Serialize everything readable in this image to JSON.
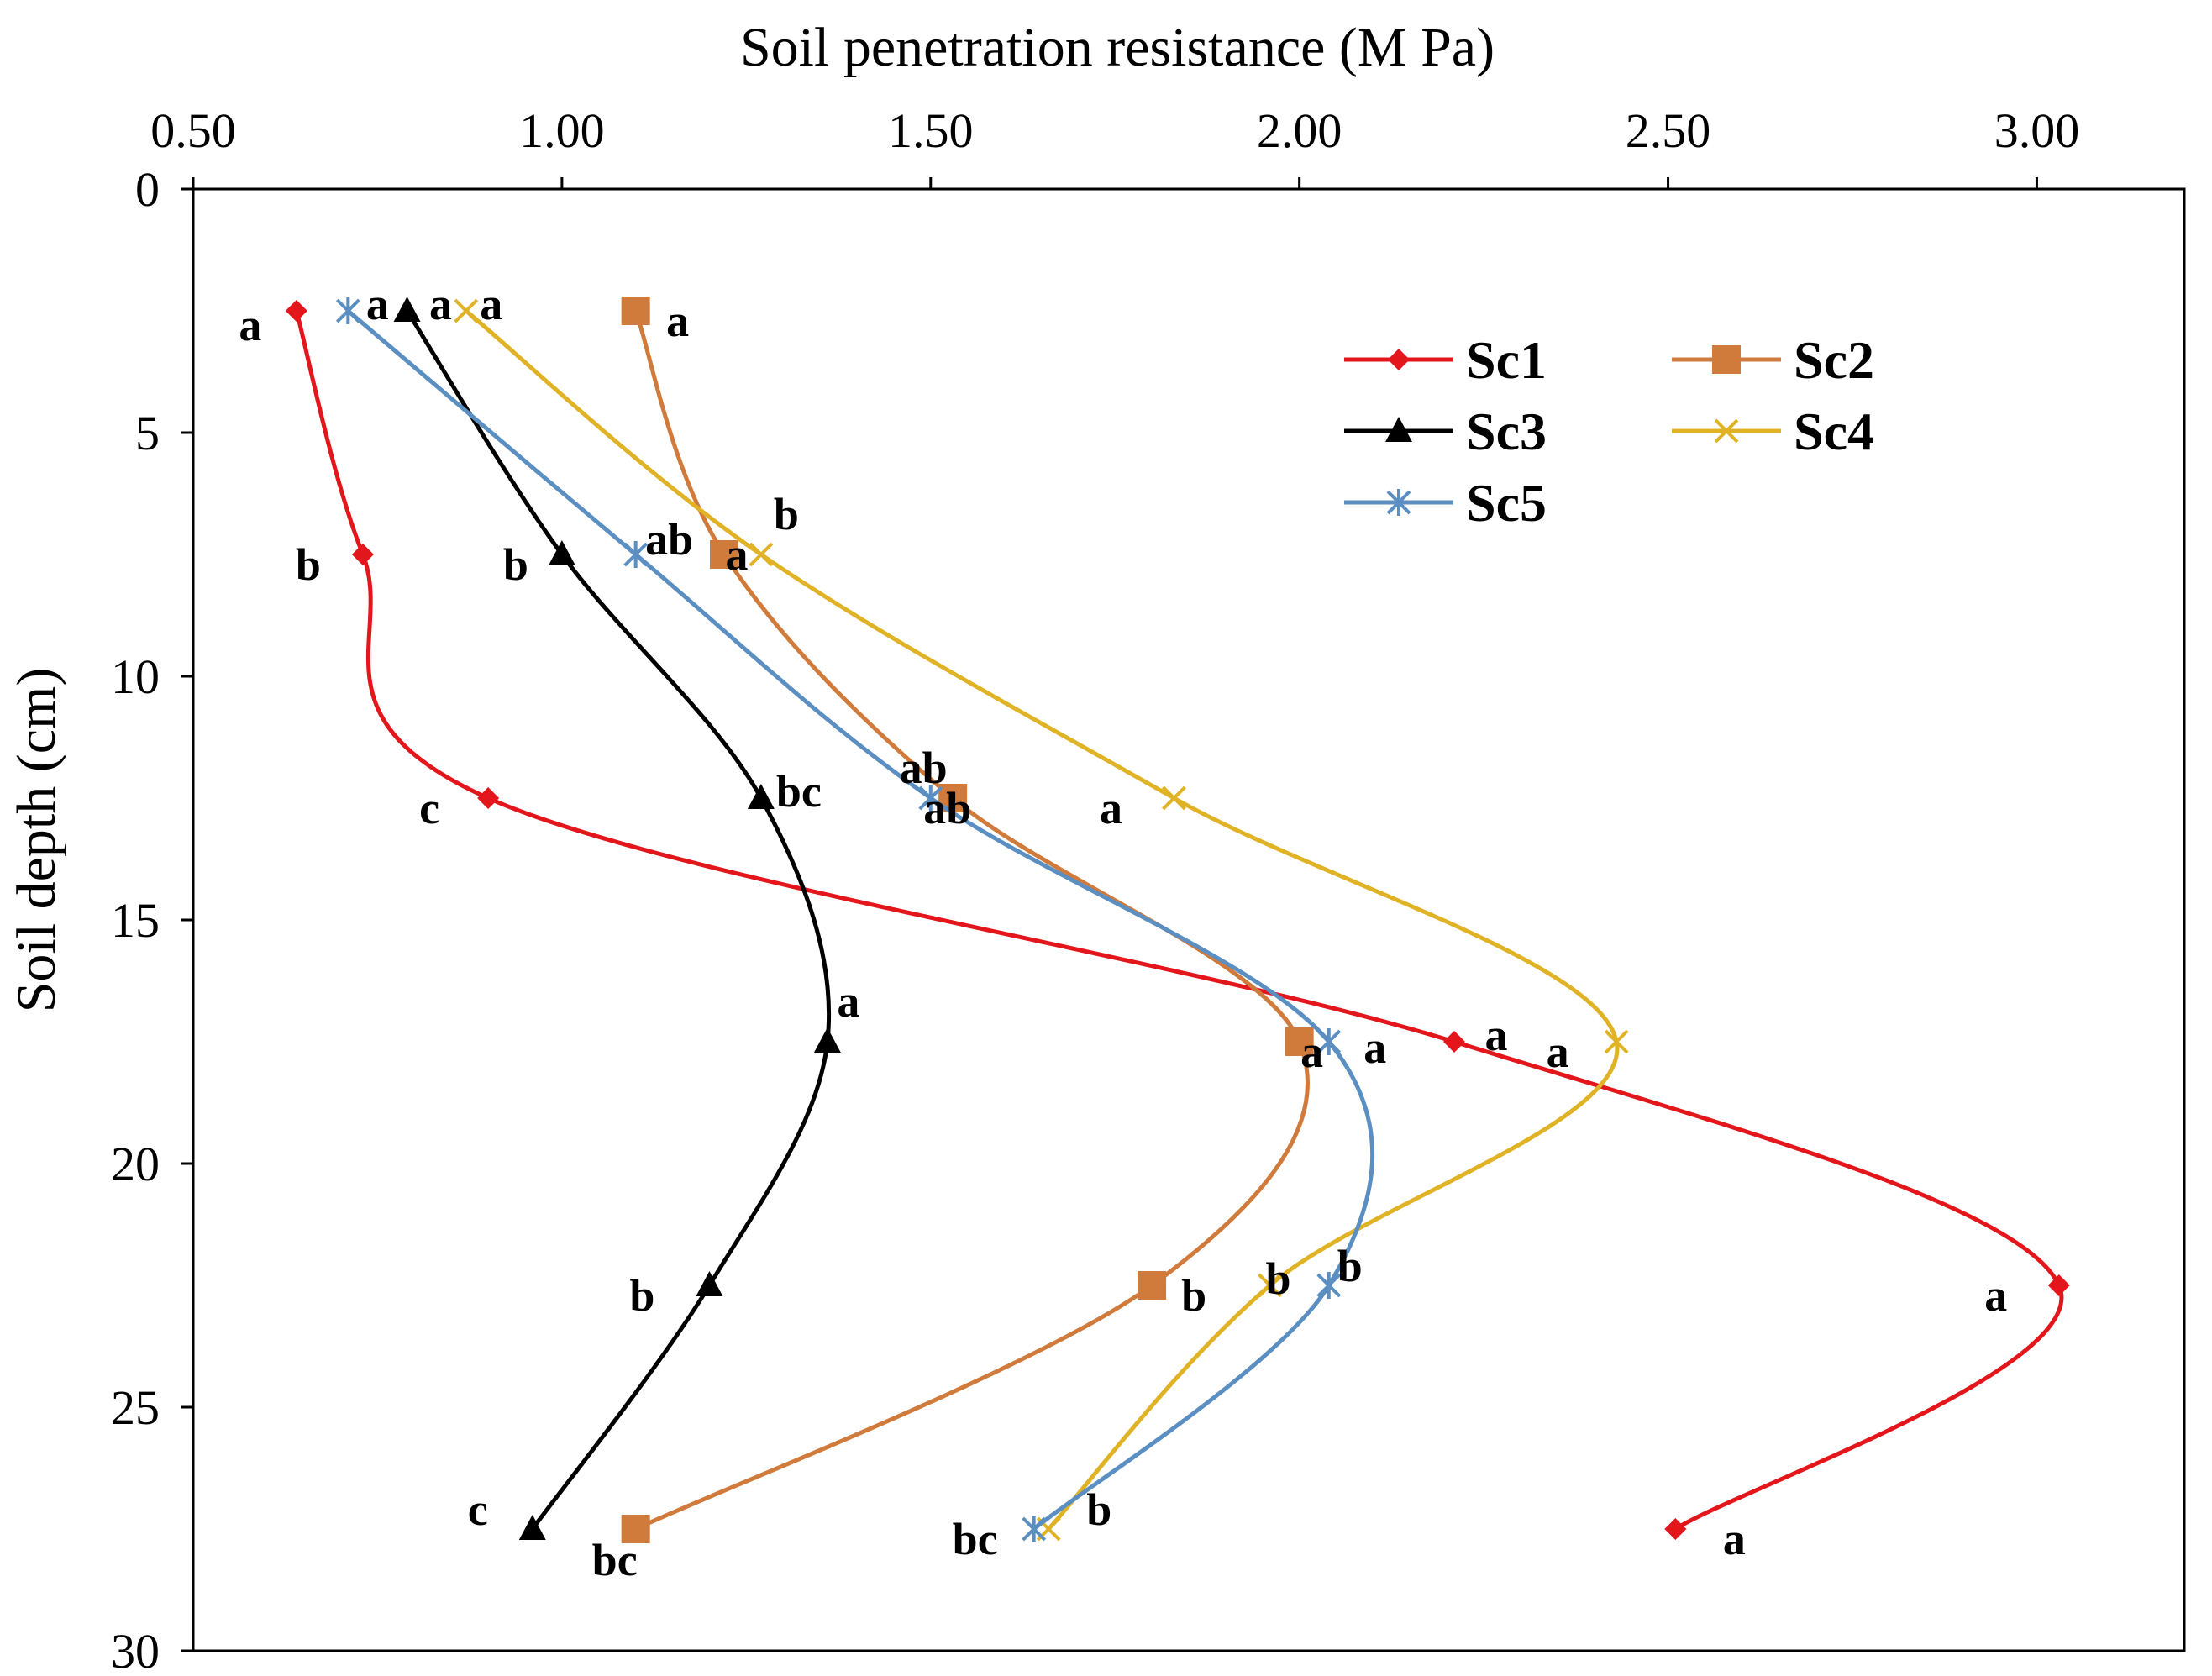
{
  "chart_data": {
    "type": "line",
    "title": "",
    "xlabel": "Soil penetration resistance (M Pa)",
    "ylabel": "Soil depth (cm)",
    "x_axis_position": "top",
    "y_axis_reversed": true,
    "xlim": [
      0.5,
      3.2
    ],
    "ylim": [
      0,
      30
    ],
    "x_ticks": [
      0.5,
      1.0,
      1.5,
      2.0,
      2.5,
      3.0
    ],
    "x_tick_labels": [
      "0.50",
      "1.00",
      "1.50",
      "2.00",
      "2.50",
      "3.00"
    ],
    "y_ticks": [
      0,
      5,
      10,
      15,
      20,
      25,
      30
    ],
    "y_tick_labels": [
      "0",
      "5",
      "10",
      "15",
      "20",
      "25",
      "30"
    ],
    "grid": false,
    "legend_position": "top-right",
    "depths": [
      2.5,
      7.5,
      12.5,
      17.5,
      22.5,
      27.5
    ],
    "series": [
      {
        "name": "Sc1",
        "color": "#e3161b",
        "marker": "diamond",
        "values": [
          0.64,
          0.73,
          0.9,
          2.21,
          3.03,
          2.51
        ],
        "labels": [
          "a",
          "b",
          "c",
          "a",
          "a",
          "a"
        ]
      },
      {
        "name": "Sc2",
        "color": "#d07b3c",
        "marker": "square",
        "values": [
          1.1,
          1.22,
          1.53,
          2.0,
          1.8,
          1.1
        ],
        "labels": [
          "a",
          "a",
          "ab",
          "a",
          "b",
          "bc"
        ]
      },
      {
        "name": "Sc3",
        "color": "#000000",
        "marker": "triangle",
        "values": [
          0.79,
          1.0,
          1.27,
          1.36,
          1.2,
          0.96
        ],
        "labels": [
          "a",
          "b",
          "bc",
          "a",
          "b",
          "c"
        ]
      },
      {
        "name": "Sc4",
        "color": "#e0b226",
        "marker": "x",
        "values": [
          0.87,
          1.27,
          1.83,
          2.43,
          1.96,
          1.66
        ],
        "labels": [
          "a",
          "b",
          "a",
          "a",
          "b",
          "b"
        ]
      },
      {
        "name": "Sc5",
        "color": "#5b8fc2",
        "marker": "star",
        "values": [
          0.71,
          1.1,
          1.5,
          2.04,
          2.04,
          1.64
        ],
        "labels": [
          "a",
          "ab",
          "ab",
          "a",
          "b",
          "bc"
        ]
      }
    ]
  }
}
